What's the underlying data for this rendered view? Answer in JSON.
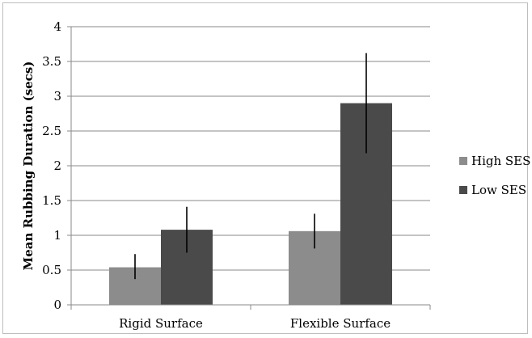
{
  "chart_data": {
    "type": "bar",
    "title": "",
    "xlabel": "",
    "ylabel": "Mean Rubbing Duration (secs)",
    "categories": [
      "Rigid Surface",
      "Flexible Surface"
    ],
    "series": [
      {
        "name": "High SES",
        "color": "#8c8c8c",
        "values": [
          0.54,
          1.06
        ],
        "error_low": [
          0.37,
          0.81
        ],
        "error_high": [
          0.73,
          1.31
        ]
      },
      {
        "name": "Low SES",
        "color": "#4a4a4a",
        "values": [
          1.08,
          2.9
        ],
        "error_low": [
          0.75,
          2.18
        ],
        "error_high": [
          1.41,
          3.62
        ]
      }
    ],
    "ylim": [
      0,
      4
    ],
    "yticks": [
      "0",
      "0.5",
      "1",
      "1.5",
      "2",
      "2.5",
      "3",
      "3.5",
      "4"
    ],
    "grid": "horizontal",
    "legend_position": "right"
  }
}
